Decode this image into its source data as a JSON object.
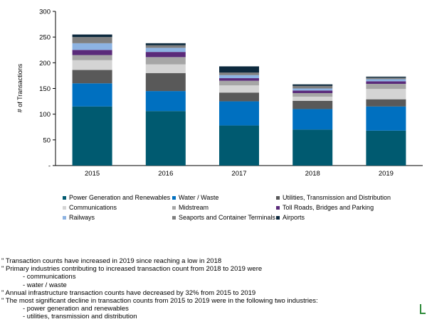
{
  "chart_data": {
    "type": "bar",
    "stacked": true,
    "ylabel": "# of Transactions",
    "ylim": [
      0,
      300
    ],
    "yticks": [
      0,
      50,
      100,
      150,
      200,
      250,
      300
    ],
    "categories": [
      "2015",
      "2016",
      "2017",
      "2018",
      "2019"
    ],
    "series": [
      {
        "name": "Power Generation and Renewables",
        "color": "#005a70",
        "values": [
          115,
          106,
          78,
          70,
          68
        ]
      },
      {
        "name": "Water / Waste",
        "color": "#0070c0",
        "values": [
          45,
          39,
          47,
          40,
          47
        ]
      },
      {
        "name": "Utilities, Transmission and Distribution",
        "color": "#595959",
        "values": [
          26,
          35,
          17,
          16,
          14
        ]
      },
      {
        "name": "Communications",
        "color": "#d4d4d4",
        "values": [
          19,
          17,
          14,
          8,
          20
        ]
      },
      {
        "name": "Midstream",
        "color": "#a6a6a6",
        "values": [
          10,
          14,
          9,
          7,
          10
        ]
      },
      {
        "name": "Toll Roads, Bridges and Parking",
        "color": "#5a2a7a",
        "values": [
          10,
          10,
          5,
          5,
          5
        ]
      },
      {
        "name": "Railways",
        "color": "#8db3e2",
        "values": [
          13,
          8,
          6,
          4,
          4
        ]
      },
      {
        "name": "Seaports and Container Terminals",
        "color": "#7f7f7f",
        "values": [
          12,
          5,
          5,
          5,
          3
        ]
      },
      {
        "name": "Airports",
        "color": "#0d2a3e",
        "values": [
          5,
          4,
          12,
          3,
          2
        ]
      }
    ],
    "legend_position": "bottom"
  },
  "notes": [
    {
      "text": "\"  Transaction counts have increased in 2019 since reaching a low in 2018",
      "sub": false
    },
    {
      "text": "\" Primary industries contributing to increased transaction count from 2018 to 2019 were",
      "sub": false
    },
    {
      "text": "- communications",
      "sub": true
    },
    {
      "text": "- water / waste",
      "sub": true
    },
    {
      "text": "\" Annual infrastructure transaction counts have decreased by 32% from 2015 to 2019",
      "sub": false
    },
    {
      "text": "\" The most significant decline in transaction counts from 2015 to 2019 were in the following two industries:",
      "sub": false
    },
    {
      "text": "- power generation and renewables",
      "sub": true
    },
    {
      "text": "- utilities, transmission and distribution",
      "sub": true
    }
  ]
}
